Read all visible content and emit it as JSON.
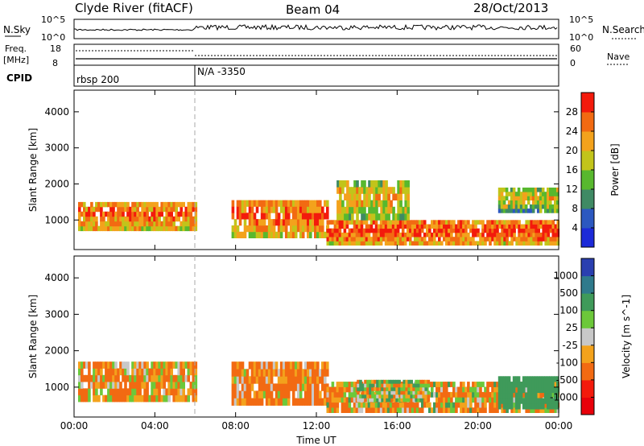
{
  "header": {
    "station": "Clyde River (fitACF)",
    "beam": "Beam 04",
    "date": "28/Oct/2013"
  },
  "top_panels": {
    "nsky_label": "N.Sky",
    "nsky_ticks": [
      "10^5",
      "10^0"
    ],
    "nsearch_label": "N.Search",
    "nsearch_ticks": [
      "10^5",
      "10^0"
    ],
    "freq_label": "Freq.",
    "freq_unit": "[MHz]",
    "freq_ticks": [
      "18",
      "8"
    ],
    "nave_label": "Nave",
    "nave_ticks": [
      "60",
      "0"
    ],
    "cpid_label": "CPID",
    "cpid_segments": [
      {
        "name": "rbsp 200",
        "start_hour": 0
      },
      {
        "name": "N/A -3350",
        "start_hour": 6
      }
    ]
  },
  "chart_data": [
    {
      "type": "heatmap",
      "title": "",
      "xlabel": "Time UT",
      "ylabel": "Slant Range [km]",
      "x_ticks": [
        "00:00",
        "04:00",
        "08:00",
        "12:00",
        "16:00",
        "20:00",
        "00:00"
      ],
      "xlim_hours": [
        0,
        24
      ],
      "y_ticks": [
        1000,
        2000,
        3000,
        4000
      ],
      "ylim": [
        180,
        4600
      ],
      "colorbar_label": "Power [dB]",
      "colorbar_ticks": [
        4,
        8,
        12,
        16,
        20,
        24,
        28
      ],
      "colorbar_colors": [
        "#1c2ad8",
        "#2c58c0",
        "#3f8a64",
        "#58b82e",
        "#c2c41a",
        "#f3a21c",
        "#f26a12",
        "#f31a0c"
      ],
      "echo_bands": [
        {
          "t0": 0.2,
          "t1": 6.0,
          "r0": 700,
          "r1": 1500,
          "level": 27
        },
        {
          "t0": 7.8,
          "t1": 12.5,
          "r0": 500,
          "r1": 1550,
          "level": 27
        },
        {
          "t0": 12.5,
          "t1": 24.0,
          "r0": 300,
          "r1": 1000,
          "level": 29
        },
        {
          "t0": 13.0,
          "t1": 16.5,
          "r0": 1000,
          "r1": 2100,
          "level": 22
        },
        {
          "t0": 21.0,
          "t1": 24.0,
          "r0": 1200,
          "r1": 1900,
          "level": 20
        }
      ]
    },
    {
      "type": "heatmap",
      "title": "",
      "xlabel": "Time UT",
      "ylabel": "Slant Range [km]",
      "x_ticks": [
        "00:00",
        "04:00",
        "08:00",
        "12:00",
        "16:00",
        "20:00",
        "00:00"
      ],
      "xlim_hours": [
        0,
        24
      ],
      "y_ticks": [
        1000,
        2000,
        3000,
        4000
      ],
      "ylim": [
        180,
        4600
      ],
      "colorbar_label": "Velocity [m s^-1]",
      "colorbar_ticks": [
        1000,
        500,
        100,
        25,
        -25,
        -100,
        -500,
        -1000
      ],
      "colorbar_colors": [
        "#2a3fb0",
        "#2f7a8c",
        "#3f9a5a",
        "#6cc83a",
        "#c8c8c8",
        "#f3a21c",
        "#f26a12",
        "#f31a0c",
        "#e8000a"
      ],
      "echo_bands": [
        {
          "t0": 0.2,
          "t1": 6.0,
          "r0": 600,
          "r1": 1700,
          "level": -100
        },
        {
          "t0": 7.8,
          "t1": 12.5,
          "r0": 500,
          "r1": 1700,
          "level": -150
        },
        {
          "t0": 12.5,
          "t1": 24.0,
          "r0": 300,
          "r1": 1150,
          "level": -80
        },
        {
          "t0": 14.0,
          "t1": 17.5,
          "r0": 600,
          "r1": 1200,
          "level": 0
        },
        {
          "t0": 21.0,
          "t1": 24.0,
          "r0": 400,
          "r1": 1300,
          "level": 300
        }
      ]
    }
  ]
}
